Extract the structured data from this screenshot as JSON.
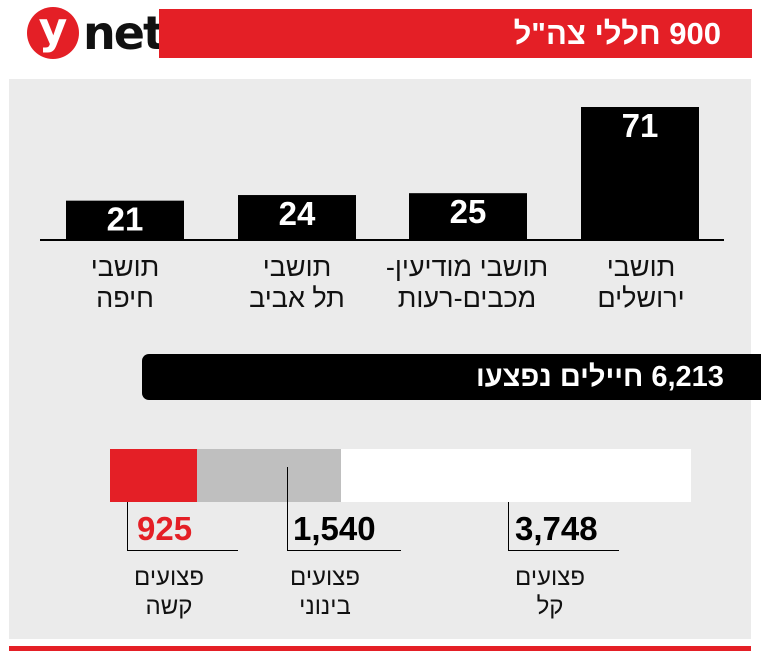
{
  "logo": {
    "mark": "y",
    "word": "net"
  },
  "title": "900 חללי צה\"ל",
  "colors": {
    "red": "#e41f26",
    "black": "#000000",
    "panel": "#ebebeb",
    "moderate_gray": "#bfbfbf",
    "white": "#ffffff"
  },
  "chart_data": [
    {
      "type": "bar",
      "categories": [
        [
          "תושבי",
          "חיפה"
        ],
        [
          "תושבי",
          "תל אביב"
        ],
        [
          "תושבי מודיעין-",
          "מכבים-רעות"
        ],
        [
          "תושבי",
          "ירושלים"
        ]
      ],
      "values": [
        21,
        24,
        25,
        71
      ],
      "value_labels": [
        "21",
        "24",
        "25",
        "71"
      ]
    },
    {
      "type": "bar",
      "orientation": "horizontal-stacked",
      "title": "6,213 חיילים נפצעו",
      "series": [
        {
          "name_lines": [
            "פצועים",
            "קשה"
          ],
          "value": 925,
          "label": "925",
          "color": "#e41f26"
        },
        {
          "name_lines": [
            "פצועים",
            "בינוני"
          ],
          "value": 1540,
          "label": "1,540",
          "color": "#bfbfbf"
        },
        {
          "name_lines": [
            "פצועים",
            "קל"
          ],
          "value": 3748,
          "label": "3,748",
          "color": "#ffffff"
        }
      ]
    }
  ]
}
